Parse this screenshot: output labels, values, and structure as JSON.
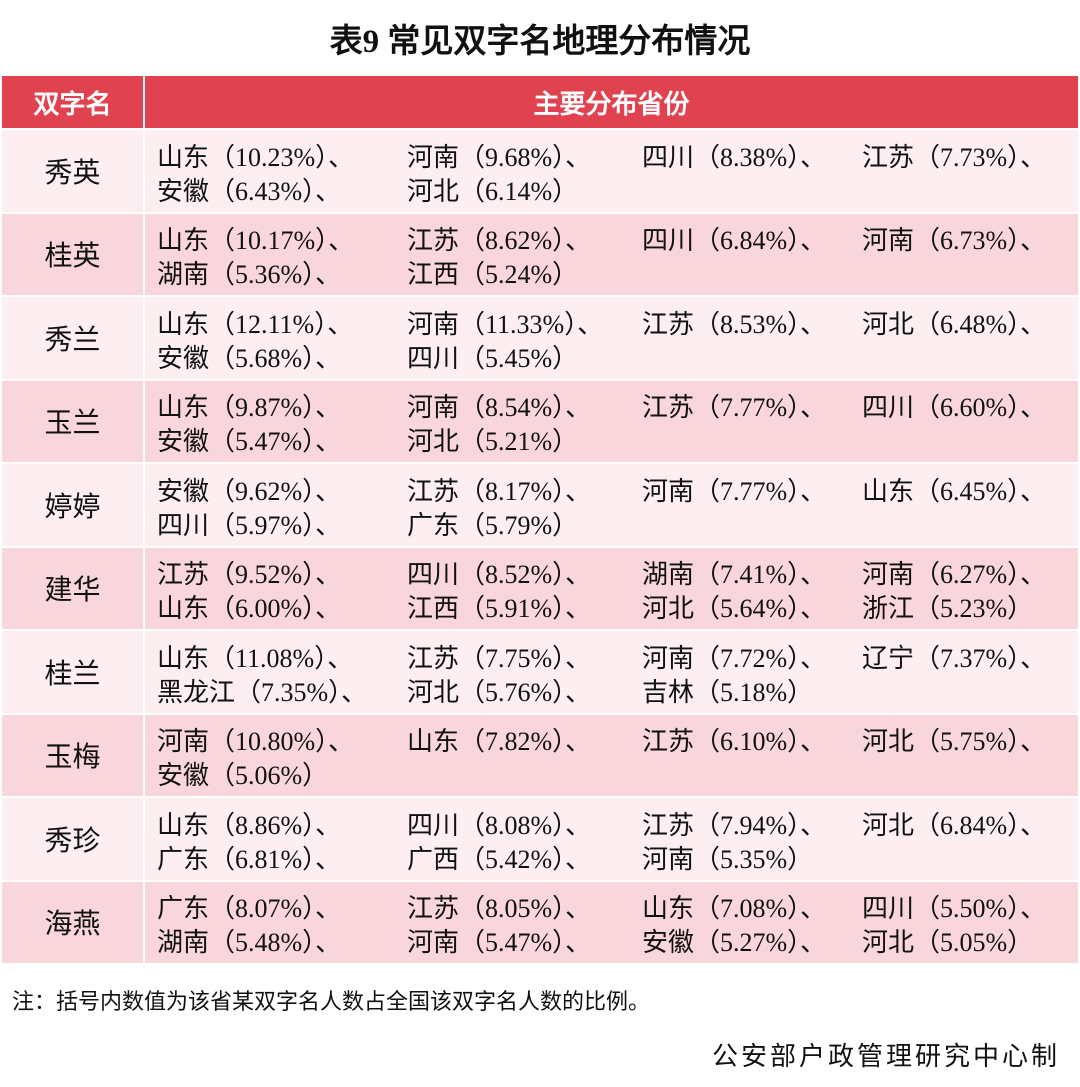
{
  "title": "表9  常见双字名地理分布情况",
  "header": [
    "双字名",
    "主要分布省份"
  ],
  "rows": [
    {
      "name": "秀英",
      "entries": [
        "山东（10.23%）、",
        "河南（9.68%）、",
        "四川（8.38%）、",
        "江苏（7.73%）、",
        "安徽（6.43%）、",
        "河北（6.14%）"
      ]
    },
    {
      "name": "桂英",
      "entries": [
        "山东（10.17%）、",
        "江苏（8.62%）、",
        "四川（6.84%）、",
        "河南（6.73%）、",
        "湖南（5.36%）、",
        "江西（5.24%）"
      ]
    },
    {
      "name": "秀兰",
      "entries": [
        "山东（12.11%）、",
        "河南（11.33%）、",
        "江苏（8.53%）、",
        "河北（6.48%）、",
        "安徽（5.68%）、",
        "四川（5.45%）"
      ]
    },
    {
      "name": "玉兰",
      "entries": [
        "山东（9.87%）、",
        "河南（8.54%）、",
        "江苏（7.77%）、",
        "四川（6.60%）、",
        "安徽（5.47%）、",
        "河北（5.21%）"
      ]
    },
    {
      "name": "婷婷",
      "entries": [
        "安徽（9.62%）、",
        "江苏（8.17%）、",
        "河南（7.77%）、",
        "山东（6.45%）、",
        "四川（5.97%）、",
        "广东（5.79%）"
      ]
    },
    {
      "name": "建华",
      "entries": [
        "江苏（9.52%）、",
        "四川（8.52%）、",
        "湖南（7.41%）、",
        "河南（6.27%）、",
        "山东（6.00%）、",
        "江西（5.91%）、",
        "河北（5.64%）、",
        "浙江（5.23%）"
      ]
    },
    {
      "name": "桂兰",
      "entries": [
        "山东（11.08%）、",
        "江苏（7.75%）、",
        "河南（7.72%）、",
        "辽宁（7.37%）、",
        "黑龙江（7.35%）、",
        "河北（5.76%）、",
        "吉林（5.18%）"
      ]
    },
    {
      "name": "玉梅",
      "entries": [
        "河南（10.80%）、",
        "山东（7.82%）、",
        "江苏（6.10%）、",
        "河北（5.75%）、",
        "安徽（5.06%）"
      ]
    },
    {
      "name": "秀珍",
      "entries": [
        "山东（8.86%）、",
        "四川（8.08%）、",
        "江苏（7.94%）、",
        "河北（6.84%）、",
        "广东（6.81%）、",
        "广西（5.42%）、",
        "河南（5.35%）"
      ]
    },
    {
      "name": "海燕",
      "entries": [
        "广东（8.07%）、",
        "江苏（8.05%）、",
        "山东（7.08%）、",
        "四川（5.50%）、",
        "湖南（5.48%）、",
        "河南（5.47%）、",
        "安徽（5.27%）、",
        "河北（5.05%）"
      ]
    }
  ],
  "note": "注：括号内数值为该省某双字名人数占全国该双字名人数的比例。",
  "source": "公安部户政管理研究中心制"
}
